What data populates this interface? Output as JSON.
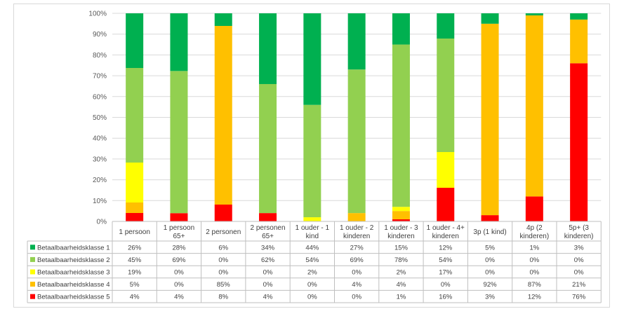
{
  "chart_data": {
    "type": "bar",
    "stacked": true,
    "normalized_percent": true,
    "categories": [
      [
        "1 persoon"
      ],
      [
        "1 persoon",
        "65+"
      ],
      [
        "2 personen"
      ],
      [
        "2 personen",
        "65+"
      ],
      [
        "1 ouder - 1",
        "kind"
      ],
      [
        "1 ouder - 2",
        "kinderen"
      ],
      [
        "1 ouder - 3",
        "kinderen"
      ],
      [
        "1 ouder - 4+",
        "kinderen"
      ],
      [
        "3p (1 kind)"
      ],
      [
        "4p (2",
        "kinderen)"
      ],
      [
        "5p+ (3",
        "kinderen)"
      ]
    ],
    "series": [
      {
        "name": "Betaalbaarheidsklasse 1",
        "color": "#00b050",
        "values": [
          26,
          28,
          6,
          34,
          44,
          27,
          15,
          12,
          5,
          1,
          3
        ],
        "labels": [
          "26%",
          "28%",
          "6%",
          "34%",
          "44%",
          "27%",
          "15%",
          "12%",
          "5%",
          "1%",
          "3%"
        ]
      },
      {
        "name": "Betaalbaarheidsklasse 2",
        "color": "#92d050",
        "values": [
          45,
          69,
          0,
          62,
          54,
          69,
          78,
          54,
          0,
          0,
          0
        ],
        "labels": [
          "45%",
          "69%",
          "0%",
          "62%",
          "54%",
          "69%",
          "78%",
          "54%",
          "0%",
          "0%",
          "0%"
        ]
      },
      {
        "name": "Betaalbaarheidsklasse 3",
        "color": "#ffff00",
        "values": [
          19,
          0,
          0,
          0,
          2,
          0,
          2,
          17,
          0,
          0,
          0
        ],
        "labels": [
          "19%",
          "0%",
          "0%",
          "0%",
          "2%",
          "0%",
          "2%",
          "17%",
          "0%",
          "0%",
          "0%"
        ]
      },
      {
        "name": "Betaalbaarheidsklasse 4",
        "color": "#ffc000",
        "values": [
          5,
          0,
          85,
          0,
          0,
          4,
          4,
          0,
          92,
          87,
          21
        ],
        "labels": [
          "5%",
          "0%",
          "85%",
          "0%",
          "0%",
          "4%",
          "4%",
          "0%",
          "92%",
          "87%",
          "21%"
        ]
      },
      {
        "name": "Betaalbaarheidsklasse 5",
        "color": "#ff0000",
        "values": [
          4,
          4,
          8,
          4,
          0,
          0,
          1,
          16,
          3,
          12,
          76
        ],
        "labels": [
          "4%",
          "4%",
          "8%",
          "4%",
          "0%",
          "0%",
          "1%",
          "16%",
          "3%",
          "12%",
          "76%"
        ]
      }
    ],
    "y_ticks": [
      "0%",
      "10%",
      "20%",
      "30%",
      "40%",
      "50%",
      "60%",
      "70%",
      "80%",
      "90%",
      "100%"
    ],
    "ylim": [
      0,
      100
    ],
    "grid": true,
    "legend": "data-table-left"
  }
}
